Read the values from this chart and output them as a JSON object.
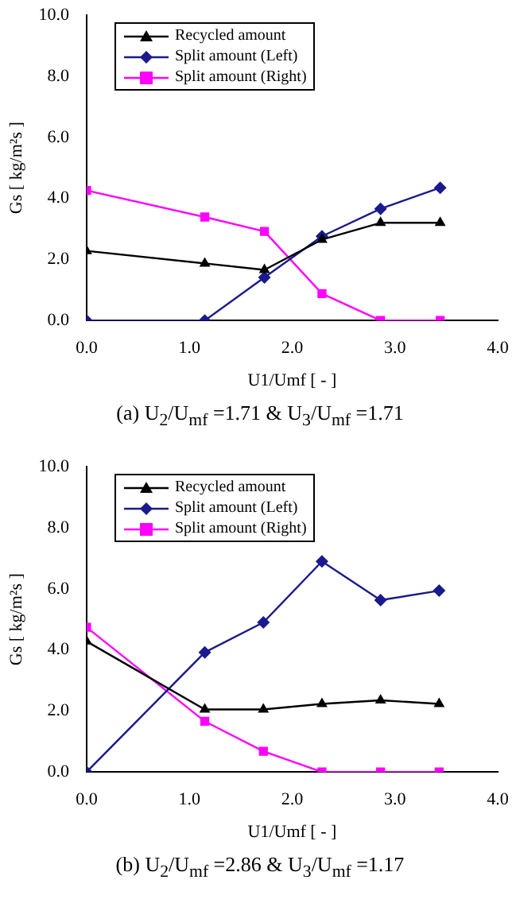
{
  "chart_data": [
    {
      "type": "line",
      "xlabel": "U1/Umf [ - ]",
      "ylabel": "Gs [ kg/m²s ]",
      "annotations": [
        "(a)  U$_{2}$/U$_{mf}$ =1.71 & U$_{3}$/U$_{mf}$ =1.71"
      ],
      "x": [
        0,
        1.15,
        1.73,
        2.29,
        2.86,
        3.44
      ],
      "series": [
        {
          "name": "Recycled amount",
          "color": "#000000",
          "marker": "triangle",
          "values": [
            2.28,
            1.87,
            1.66,
            2.65,
            3.2,
            3.2
          ]
        },
        {
          "name": "Split amount (Left)",
          "color": "#1a1a8c",
          "marker": "diamond",
          "values": [
            0,
            0,
            1.41,
            2.76,
            3.66,
            4.35
          ]
        },
        {
          "name": "Split amount (Right)",
          "color": "#ff00ff",
          "marker": "square",
          "values": [
            4.26,
            3.39,
            2.92,
            0.88,
            0,
            0
          ]
        }
      ],
      "xlim": [
        0,
        4
      ],
      "xticks": [
        {
          "value": 0,
          "label": "0.0"
        },
        {
          "value": 1,
          "label": "1.0"
        },
        {
          "value": 2,
          "label": "2.0"
        },
        {
          "value": 3,
          "label": "3.0"
        },
        {
          "value": 4,
          "label": "4.0"
        }
      ],
      "ylim": [
        0,
        10
      ],
      "yticks": [
        {
          "value": 0,
          "label": "0.0"
        },
        {
          "value": 2,
          "label": "2.0"
        },
        {
          "value": 4,
          "label": "4.0"
        },
        {
          "value": 6,
          "label": "6.0"
        },
        {
          "value": 8,
          "label": "8.0"
        },
        {
          "value": 10,
          "label": "10.0"
        }
      ],
      "grid": false,
      "legend": "top left",
      "line_style": "solid"
    },
    {
      "type": "line",
      "xlabel": "U1/Umf [ - ]",
      "ylabel": "Gs [ kg/m²s ]",
      "annotations": [
        "(b) U$_{2}$/U$_{mf}$ =2.86 & U$_{3}$/U$_{mf}$ =1.17"
      ],
      "x": [
        0,
        1.15,
        1.72,
        2.29,
        2.86,
        3.43
      ],
      "series": [
        {
          "name": "Recycled amount",
          "color": "#000000",
          "marker": "triangle",
          "values": [
            4.28,
            2.05,
            2.05,
            2.23,
            2.35,
            2.23
          ]
        },
        {
          "name": "Split amount (Left)",
          "color": "#1a1a8c",
          "marker": "diamond",
          "values": [
            0,
            3.92,
            4.9,
            6.9,
            5.63,
            5.94
          ]
        },
        {
          "name": "Split amount (Right)",
          "color": "#ff00ff",
          "marker": "square",
          "values": [
            4.74,
            1.66,
            0.68,
            0,
            0,
            0
          ]
        }
      ],
      "xlim": [
        0,
        4
      ],
      "xticks": [
        {
          "value": 0,
          "label": "0.0"
        },
        {
          "value": 1,
          "label": "1.0"
        },
        {
          "value": 2,
          "label": "2.0"
        },
        {
          "value": 3,
          "label": "3.0"
        },
        {
          "value": 4,
          "label": "4.0"
        }
      ],
      "ylim": [
        0,
        10
      ],
      "yticks": [
        {
          "value": 0,
          "label": "0.0"
        },
        {
          "value": 2,
          "label": "2.0"
        },
        {
          "value": 4,
          "label": "4.0"
        },
        {
          "value": 6,
          "label": "6.0"
        },
        {
          "value": 8,
          "label": "8.0"
        },
        {
          "value": 10,
          "label": "10.0"
        }
      ],
      "grid": false,
      "legend": "top left",
      "line_style": "solid"
    }
  ]
}
